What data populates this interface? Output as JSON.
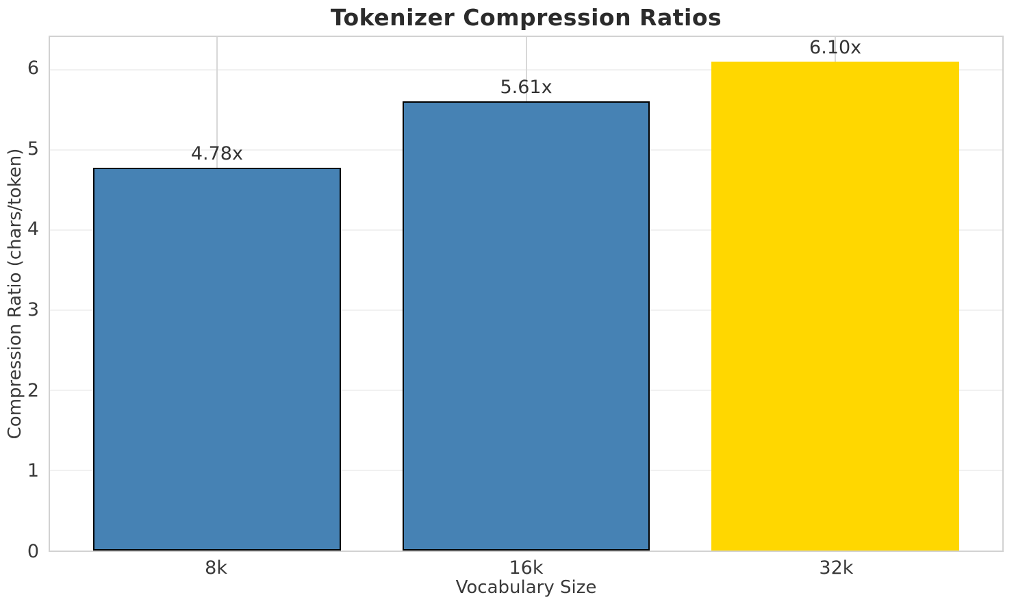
{
  "chart_data": {
    "type": "bar",
    "title": "Tokenizer Compression Ratios",
    "xlabel": "Vocabulary Size",
    "ylabel": "Compression Ratio (chars/token)",
    "categories": [
      "8k",
      "16k",
      "32k"
    ],
    "values": [
      4.78,
      5.61,
      6.1
    ],
    "value_labels": [
      "4.78x",
      "5.61x",
      "6.10x"
    ],
    "bar_colors": [
      "#4682B4",
      "#4682B4",
      "#FFD700"
    ],
    "bar_edge_colors": [
      "#000000",
      "#000000",
      "none"
    ],
    "highlight_index": 2,
    "ylim": [
      0,
      6.41
    ],
    "yticks": [
      0,
      1,
      2,
      3,
      4,
      5,
      6
    ],
    "grid": "on",
    "legend": "none"
  }
}
